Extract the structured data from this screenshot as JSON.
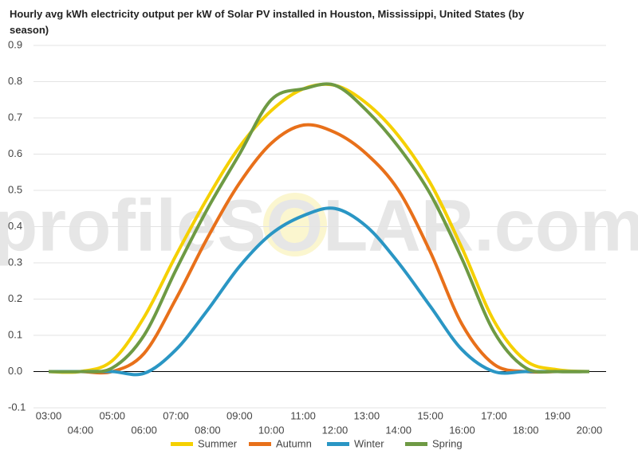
{
  "chart_data": {
    "type": "line",
    "title": "Hourly avg kWh electricity output per kW of Solar PV installed in Houston, Mississippi, United States (by season)",
    "watermark": "profileSOLAR.com",
    "categories": [
      "03:00",
      "04:00",
      "05:00",
      "06:00",
      "07:00",
      "08:00",
      "09:00",
      "10:00",
      "11:00",
      "12:00",
      "13:00",
      "14:00",
      "15:00",
      "16:00",
      "17:00",
      "18:00",
      "19:00",
      "20:00"
    ],
    "series": [
      {
        "name": "Summer",
        "color": "#f5d000",
        "values": [
          0,
          0,
          0.03,
          0.15,
          0.32,
          0.48,
          0.62,
          0.72,
          0.78,
          0.79,
          0.74,
          0.65,
          0.52,
          0.34,
          0.14,
          0.03,
          0.005,
          0
        ]
      },
      {
        "name": "Autumn",
        "color": "#e8701a",
        "values": [
          0,
          0,
          0,
          0.05,
          0.2,
          0.37,
          0.52,
          0.63,
          0.68,
          0.66,
          0.6,
          0.5,
          0.33,
          0.13,
          0.02,
          0,
          0,
          0
        ]
      },
      {
        "name": "Winter",
        "color": "#2a96c4",
        "values": [
          0,
          0,
          0,
          -0.005,
          0.06,
          0.17,
          0.29,
          0.38,
          0.43,
          0.45,
          0.4,
          0.3,
          0.18,
          0.06,
          0,
          0,
          0,
          0
        ]
      },
      {
        "name": "Spring",
        "color": "#6e9a44",
        "values": [
          0,
          0,
          0.01,
          0.1,
          0.28,
          0.45,
          0.6,
          0.75,
          0.78,
          0.79,
          0.72,
          0.62,
          0.49,
          0.31,
          0.11,
          0.01,
          0,
          0
        ]
      }
    ],
    "ylim": [
      -0.1,
      0.9
    ],
    "yticks": [
      -0.1,
      {
        "value": 0,
        "label": "0.0"
      },
      0.1,
      0.2,
      0.3,
      0.4,
      0.5,
      0.6,
      0.7,
      0.8,
      0.9
    ],
    "grid": true,
    "legend": "bottom"
  }
}
